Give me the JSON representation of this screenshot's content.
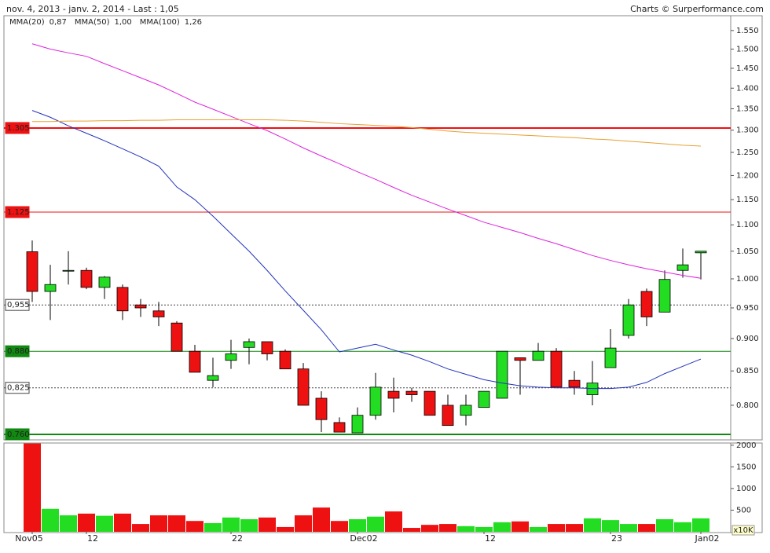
{
  "chart_data": {
    "type": "candlestick",
    "title": "nov. 4, 2013 - janv. 2, 2014 - Last : 1,05",
    "credit": "Charts © Surperformance.com",
    "categories": [
      "Nov05",
      null,
      null,
      "12",
      null,
      null,
      null,
      null,
      null,
      null,
      null,
      "22",
      null,
      null,
      null,
      null,
      null,
      null,
      "Dec02",
      null,
      null,
      null,
      null,
      null,
      null,
      "12",
      null,
      null,
      null,
      null,
      null,
      null,
      "23",
      null,
      null,
      null,
      null,
      "Jan02"
    ],
    "open": [
      1.049,
      0.978,
      1.015,
      1.015,
      0.985,
      0.985,
      0.955,
      0.945,
      0.925,
      0.88,
      0.836,
      0.866,
      0.886,
      0.895,
      0.88,
      0.853,
      0.81,
      0.776,
      0.762,
      0.786,
      0.82,
      0.82,
      0.82,
      0.8,
      0.786,
      0.797,
      0.81,
      0.87,
      0.866,
      0.88,
      0.836,
      0.815,
      0.855,
      0.905,
      0.978,
      0.943,
      1.015,
      1.047
    ],
    "high": [
      1.07,
      1.025,
      1.05,
      1.02,
      1.005,
      0.99,
      0.965,
      0.96,
      0.928,
      0.89,
      0.87,
      0.898,
      0.9,
      0.895,
      0.883,
      0.862,
      0.82,
      0.783,
      0.797,
      0.847,
      0.84,
      0.825,
      0.82,
      0.815,
      0.815,
      0.82,
      0.88,
      0.87,
      0.893,
      0.885,
      0.85,
      0.865,
      0.915,
      0.965,
      0.983,
      1.015,
      1.055,
      1.05
    ],
    "low": [
      0.96,
      0.93,
      0.99,
      0.982,
      0.965,
      0.93,
      0.935,
      0.92,
      0.88,
      0.848,
      0.826,
      0.853,
      0.86,
      0.866,
      0.853,
      0.8,
      0.763,
      0.763,
      0.762,
      0.78,
      0.79,
      0.805,
      0.786,
      0.772,
      0.772,
      0.797,
      0.81,
      0.815,
      0.866,
      0.826,
      0.815,
      0.8,
      0.855,
      0.9,
      0.92,
      0.943,
      1.002,
      0.999
    ],
    "close": [
      0.978,
      0.99,
      1.015,
      0.985,
      1.003,
      0.945,
      0.95,
      0.935,
      0.88,
      0.848,
      0.843,
      0.876,
      0.895,
      0.876,
      0.853,
      0.8,
      0.78,
      0.763,
      0.786,
      0.826,
      0.81,
      0.815,
      0.786,
      0.772,
      0.8,
      0.82,
      0.88,
      0.866,
      0.88,
      0.826,
      0.826,
      0.832,
      0.885,
      0.955,
      0.935,
      0.999,
      1.025,
      1.05
    ],
    "up_color": "#22dd22",
    "down_color": "#ee1111",
    "log_scale": true,
    "ylim": [
      0.7526,
      1.591
    ],
    "yticks": [
      {
        "value": 0.8,
        "label": "0.800"
      },
      {
        "value": 0.85,
        "label": "0.850"
      },
      {
        "value": 0.9,
        "label": "0.900"
      },
      {
        "value": 0.95,
        "label": "0.950"
      },
      {
        "value": 1.0,
        "label": "1.000"
      },
      {
        "value": 1.05,
        "label": "1.050"
      },
      {
        "value": 1.1,
        "label": "1.100"
      },
      {
        "value": 1.15,
        "label": "1.150"
      },
      {
        "value": 1.2,
        "label": "1.200"
      },
      {
        "value": 1.25,
        "label": "1.250"
      },
      {
        "value": 1.3,
        "label": "1.300"
      },
      {
        "value": 1.35,
        "label": "1.350"
      },
      {
        "value": 1.4,
        "label": "1.400"
      },
      {
        "value": 1.45,
        "label": "1.450"
      },
      {
        "value": 1.5,
        "label": "1.500"
      },
      {
        "value": 1.55,
        "label": "1.550"
      }
    ],
    "series": [
      {
        "name": "MMA(20)",
        "legend_value": "0,87",
        "color": "#2233bb",
        "values": [
          1.346,
          1.33,
          1.31,
          1.293,
          1.276,
          1.258,
          1.24,
          1.22,
          1.176,
          1.15,
          1.117,
          1.083,
          1.05,
          1.015,
          0.979,
          0.946,
          0.914,
          0.879,
          0.885,
          0.891,
          0.882,
          0.874,
          0.864,
          0.853,
          0.845,
          0.837,
          0.832,
          0.828,
          0.826,
          0.825,
          0.825,
          0.824,
          0.824,
          0.826,
          0.833,
          0.846,
          0.857,
          0.868
        ]
      },
      {
        "name": "MMA(50)",
        "legend_value": "1,00",
        "color": "#dd22dd",
        "values": [
          1.514,
          1.5,
          1.49,
          1.481,
          1.462,
          1.444,
          1.426,
          1.408,
          1.387,
          1.366,
          1.349,
          1.332,
          1.315,
          1.299,
          1.28,
          1.26,
          1.242,
          1.225,
          1.208,
          1.192,
          1.175,
          1.159,
          1.145,
          1.131,
          1.118,
          1.105,
          1.095,
          1.085,
          1.074,
          1.064,
          1.053,
          1.042,
          1.033,
          1.025,
          1.018,
          1.012,
          1.006,
          1.001
        ]
      },
      {
        "name": "MMA(100)",
        "legend_value": "1,26",
        "color": "#e8a030",
        "values": [
          1.32,
          1.32,
          1.321,
          1.321,
          1.322,
          1.322,
          1.323,
          1.323,
          1.324,
          1.324,
          1.324,
          1.324,
          1.324,
          1.324,
          1.323,
          1.321,
          1.318,
          1.315,
          1.313,
          1.311,
          1.309,
          1.306,
          1.302,
          1.298,
          1.295,
          1.293,
          1.291,
          1.289,
          1.287,
          1.285,
          1.283,
          1.28,
          1.278,
          1.275,
          1.272,
          1.269,
          1.266,
          1.264
        ]
      }
    ],
    "levels": [
      {
        "value": 1.305,
        "label": "1.305",
        "color": "#ee1111",
        "width": 2,
        "style": "solid",
        "filled": true
      },
      {
        "value": 1.125,
        "label": "1.125",
        "color": "#ee1111",
        "width": 1,
        "style": "solid",
        "filled": true
      },
      {
        "value": 0.955,
        "label": "0,955",
        "color": "#444444",
        "width": 1,
        "style": "dashed",
        "filled": false
      },
      {
        "value": 0.88,
        "label": "0.880",
        "color": "#118811",
        "width": 1,
        "style": "solid",
        "filled": true
      },
      {
        "value": 0.825,
        "label": "0,825",
        "color": "#444444",
        "width": 1,
        "style": "dashed",
        "filled": false
      },
      {
        "value": 0.76,
        "label": "0.760",
        "color": "#118811",
        "width": 2,
        "style": "solid",
        "filled": true
      }
    ],
    "volume": {
      "unit_label": "x10K",
      "values": [
        2040,
        530,
        380,
        420,
        370,
        420,
        180,
        380,
        380,
        250,
        200,
        330,
        290,
        330,
        110,
        380,
        560,
        250,
        290,
        350,
        470,
        90,
        160,
        180,
        130,
        110,
        220,
        240,
        110,
        180,
        180,
        310,
        270,
        180,
        180,
        290,
        220,
        310
      ],
      "ylim": [
        0,
        2050
      ],
      "yticks": [
        500,
        1000,
        1500,
        2000
      ]
    }
  }
}
